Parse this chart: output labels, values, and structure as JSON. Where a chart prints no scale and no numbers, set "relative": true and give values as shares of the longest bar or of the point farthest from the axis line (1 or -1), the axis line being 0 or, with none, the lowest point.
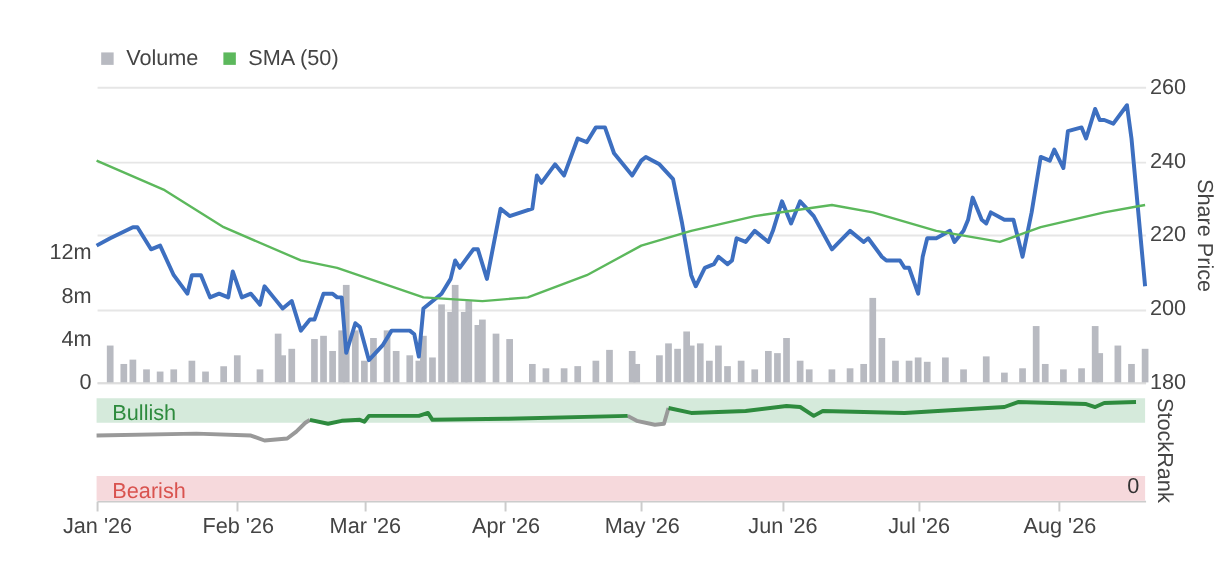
{
  "chart_data": [
    {
      "type": "line",
      "legend": "top left",
      "grid": "y",
      "marker": "none",
      "tick_labels": "y",
      "ylabel": "Share Price",
      "xlim": [
        "2026-01-01",
        "2026-08-20"
      ],
      "ylim": [
        180,
        260
      ],
      "yticks": [
        180,
        200,
        220,
        240,
        260
      ],
      "y2lim": [
        0,
        27.3
      ],
      "y2ticks": [
        {
          "value": 0,
          "label": "0"
        },
        {
          "value": 4,
          "label": "4m"
        },
        {
          "value": 8,
          "label": "8m"
        },
        {
          "value": 12,
          "label": "12m"
        }
      ],
      "series": [
        {
          "name": "Volume",
          "type": "bar",
          "axis": "y2",
          "color": "#b8bac1",
          "x": [
            "2026-01-04",
            "2026-01-07",
            "2026-01-09",
            "2026-01-12",
            "2026-01-15",
            "2026-01-18",
            "2026-01-22",
            "2026-01-25",
            "2026-01-29",
            "2026-02-01",
            "2026-02-06",
            "2026-02-10",
            "2026-02-11",
            "2026-02-13",
            "2026-02-18",
            "2026-02-20",
            "2026-02-22",
            "2026-02-24",
            "2026-02-25",
            "2026-02-27",
            "2026-03-01",
            "2026-03-03",
            "2026-03-06",
            "2026-03-08",
            "2026-03-11",
            "2026-03-13",
            "2026-03-14",
            "2026-03-16",
            "2026-03-18",
            "2026-03-20",
            "2026-03-21",
            "2026-03-23",
            "2026-03-24",
            "2026-03-26",
            "2026-03-27",
            "2026-03-30",
            "2026-04-02",
            "2026-04-07",
            "2026-04-10",
            "2026-04-14",
            "2026-04-17",
            "2026-04-21",
            "2026-04-24",
            "2026-04-29",
            "2026-04-30",
            "2026-05-05",
            "2026-05-07",
            "2026-05-09",
            "2026-05-11",
            "2026-05-12",
            "2026-05-14",
            "2026-05-16",
            "2026-05-18",
            "2026-05-20",
            "2026-05-23",
            "2026-05-26",
            "2026-05-29",
            "2026-05-31",
            "2026-06-02",
            "2026-06-05",
            "2026-06-07",
            "2026-06-12",
            "2026-06-16",
            "2026-06-19",
            "2026-06-21",
            "2026-06-23",
            "2026-06-26",
            "2026-06-29",
            "2026-07-01",
            "2026-07-03",
            "2026-07-07",
            "2026-07-11",
            "2026-07-16",
            "2026-07-20",
            "2026-07-24",
            "2026-07-27",
            "2026-07-29",
            "2026-08-02",
            "2026-08-06",
            "2026-08-09",
            "2026-08-10",
            "2026-08-14",
            "2026-08-17",
            "2026-08-20"
          ],
          "values": [
            3.4,
            1.7,
            2.1,
            1.2,
            1.0,
            1.2,
            2.0,
            1.0,
            1.5,
            2.5,
            1.2,
            4.5,
            2.5,
            3.1,
            4.0,
            4.3,
            2.9,
            4.8,
            9.0,
            4.8,
            2.0,
            4.1,
            4.8,
            2.9,
            2.5,
            2.0,
            4.3,
            2.3,
            7.2,
            6.5,
            9.0,
            6.5,
            7.5,
            5.3,
            5.8,
            4.5,
            4.0,
            1.7,
            1.3,
            1.3,
            1.5,
            2.0,
            3.0,
            2.9,
            1.7,
            2.5,
            3.6,
            3.1,
            4.7,
            3.4,
            3.6,
            2.0,
            3.4,
            1.5,
            2.0,
            1.2,
            2.9,
            2.7,
            4.1,
            2.0,
            1.2,
            1.2,
            1.3,
            1.7,
            7.8,
            4.1,
            2.0,
            2.0,
            2.3,
            1.9,
            2.3,
            1.2,
            2.4,
            0.9,
            1.3,
            5.2,
            1.7,
            1.2,
            1.3,
            5.2,
            2.7,
            3.4,
            1.7,
            3.1
          ]
        },
        {
          "color": "#3d6fc0",
          "x": [
            "2026-01-01",
            "2026-01-04",
            "2026-01-09",
            "2026-01-10",
            "2026-01-13",
            "2026-01-15",
            "2026-01-18",
            "2026-01-21",
            "2026-01-22",
            "2026-01-24",
            "2026-01-26",
            "2026-01-28",
            "2026-01-30",
            "2026-01-31",
            "2026-02-02",
            "2026-02-04",
            "2026-02-06",
            "2026-02-07",
            "2026-02-09",
            "2026-02-11",
            "2026-02-13",
            "2026-02-15",
            "2026-02-17",
            "2026-02-18",
            "2026-02-20",
            "2026-02-22",
            "2026-02-23",
            "2026-02-24",
            "2026-02-25",
            "2026-02-27",
            "2026-02-28",
            "2026-03-02",
            "2026-03-05",
            "2026-03-07",
            "2026-03-09",
            "2026-03-11",
            "2026-03-12",
            "2026-03-13",
            "2026-03-14",
            "2026-03-18",
            "2026-03-20",
            "2026-03-21",
            "2026-03-22",
            "2026-03-25",
            "2026-03-26",
            "2026-03-28",
            "2026-03-31",
            "2026-04-02",
            "2026-04-07",
            "2026-04-08",
            "2026-04-09",
            "2026-04-12",
            "2026-04-14",
            "2026-04-17",
            "2026-04-19",
            "2026-04-21",
            "2026-04-23",
            "2026-04-25",
            "2026-04-29",
            "2026-05-01",
            "2026-05-02",
            "2026-05-05",
            "2026-05-08",
            "2026-05-10",
            "2026-05-12",
            "2026-05-13",
            "2026-05-15",
            "2026-05-17",
            "2026-05-18",
            "2026-05-20",
            "2026-05-21",
            "2026-05-22",
            "2026-05-24",
            "2026-05-26",
            "2026-05-29",
            "2026-05-30",
            "2026-06-01",
            "2026-06-03",
            "2026-06-05",
            "2026-06-08",
            "2026-06-12",
            "2026-06-16",
            "2026-06-19",
            "2026-06-20",
            "2026-06-23",
            "2026-06-24",
            "2026-06-27",
            "2026-06-28",
            "2026-06-29",
            "2026-07-01",
            "2026-07-02",
            "2026-07-03",
            "2026-07-05",
            "2026-07-08",
            "2026-07-09",
            "2026-07-11",
            "2026-07-12",
            "2026-07-13",
            "2026-07-15",
            "2026-07-16",
            "2026-07-17",
            "2026-07-20",
            "2026-07-22",
            "2026-07-24",
            "2026-07-26",
            "2026-07-28",
            "2026-07-30",
            "2026-07-31",
            "2026-08-02",
            "2026-08-03",
            "2026-08-06",
            "2026-08-07",
            "2026-08-09",
            "2026-08-10",
            "2026-08-11",
            "2026-08-13",
            "2026-08-16",
            "2026-08-17",
            "2026-08-20"
          ],
          "values": [
            217,
            219,
            222,
            222,
            216,
            217,
            209,
            204,
            209,
            209,
            203,
            204,
            203,
            210,
            203,
            204,
            201,
            206,
            203,
            200,
            202,
            194,
            197,
            197,
            204,
            204,
            203,
            203,
            188,
            196,
            195,
            186,
            190,
            194,
            194,
            194,
            193,
            187,
            200,
            204,
            208,
            213,
            211,
            216,
            216,
            208,
            227,
            225,
            227,
            236,
            234,
            239,
            236,
            246,
            245,
            249,
            249,
            242,
            236,
            240,
            241,
            239,
            235,
            223,
            209,
            206,
            211,
            212,
            214,
            212,
            213,
            219,
            218,
            221,
            218,
            221,
            229,
            223,
            229,
            225,
            216,
            221,
            218,
            219,
            214,
            213,
            213,
            211,
            211,
            204,
            214,
            219,
            219,
            221,
            218,
            221,
            224,
            230,
            224,
            223,
            226,
            224,
            224,
            214,
            226,
            241,
            240,
            243,
            238,
            248,
            249,
            246,
            254,
            251,
            251,
            250,
            255,
            246,
            206
          ]
        },
        {
          "name": "SMA (50)",
          "color": "#5cb85c",
          "x": [
            "2026-01-01",
            "2026-01-16",
            "2026-01-29",
            "2026-02-15",
            "2026-02-23",
            "2026-03-14",
            "2026-03-27",
            "2026-04-06",
            "2026-04-19",
            "2026-05-01",
            "2026-05-12",
            "2026-05-26",
            "2026-06-12",
            "2026-06-21",
            "2026-07-05",
            "2026-07-19",
            "2026-07-28",
            "2026-08-11",
            "2026-08-20"
          ],
          "values": [
            240,
            232,
            222,
            213,
            211,
            203,
            202,
            203,
            209,
            217,
            221,
            225,
            228,
            226,
            221,
            218,
            222,
            226,
            228
          ]
        }
      ]
    },
    {
      "type": "line",
      "legend": false,
      "marker": "none",
      "relative": true,
      "ylabel": "StockRank",
      "annotations": [
        "0"
      ],
      "xlim": [
        "2026-01-01",
        "2026-08-20"
      ],
      "xticks": [
        {
          "value": "2026-01-01",
          "label": "Jan '26"
        },
        {
          "value": "2026-02-01",
          "label": "Feb '26"
        },
        {
          "value": "2026-03-01",
          "label": "Mar '26"
        },
        {
          "value": "2026-04-01",
          "label": "Apr '26"
        },
        {
          "value": "2026-05-01",
          "label": "May '26"
        },
        {
          "value": "2026-06-01",
          "label": "Jun '26"
        },
        {
          "value": "2026-07-01",
          "label": "Jul '26"
        },
        {
          "value": "2026-08-01",
          "label": "Aug '26"
        }
      ],
      "bands": [
        {
          "axis": "y",
          "from": 0.79,
          "to": 1.04,
          "label": "Bullish",
          "color": "#d5eadb"
        },
        {
          "axis": "y",
          "from": 0,
          "to": 0.25,
          "label": "Bearish",
          "color": "#f6d9dc"
        }
      ],
      "x": [
        "2026-01-01",
        "2026-01-23",
        "2026-02-04",
        "2026-02-07",
        "2026-02-12",
        "2026-02-14",
        "2026-02-16",
        "2026-02-17",
        "2026-02-21",
        "2026-02-24",
        "2026-02-28",
        "2026-03-01",
        "2026-03-02",
        "2026-03-13",
        "2026-03-15",
        "2026-03-16",
        "2026-04-01",
        "2026-04-28",
        "2026-04-30",
        "2026-05-04",
        "2026-05-06",
        "2026-05-07",
        "2026-05-12",
        "2026-05-24",
        "2026-06-02",
        "2026-06-05",
        "2026-06-08",
        "2026-06-10",
        "2026-06-28",
        "2026-07-20",
        "2026-07-23",
        "2026-08-07",
        "2026-08-09",
        "2026-08-11",
        "2026-08-18"
      ],
      "series": [
        {
          "color": "#999999",
          "values": [
            0.66,
            0.68,
            0.66,
            0.61,
            0.63,
            0.7,
            0.79,
            0.82,
            null,
            null,
            null,
            null,
            null,
            null,
            null,
            null,
            null,
            0.86,
            0.81,
            0.77,
            0.78,
            0.94,
            null,
            null,
            null,
            null,
            null,
            null,
            null,
            null,
            null,
            null,
            null,
            null,
            null
          ]
        },
        {
          "color": "#2e8b3e",
          "values": [
            null,
            null,
            null,
            null,
            null,
            null,
            null,
            0.82,
            0.78,
            0.81,
            0.82,
            0.8,
            0.86,
            0.86,
            0.89,
            0.82,
            0.83,
            0.86,
            null,
            null,
            null,
            0.94,
            0.89,
            0.91,
            0.96,
            0.95,
            0.86,
            0.91,
            0.89,
            0.95,
            1,
            0.98,
            0.95,
            0.99,
            1
          ]
        }
      ]
    }
  ]
}
